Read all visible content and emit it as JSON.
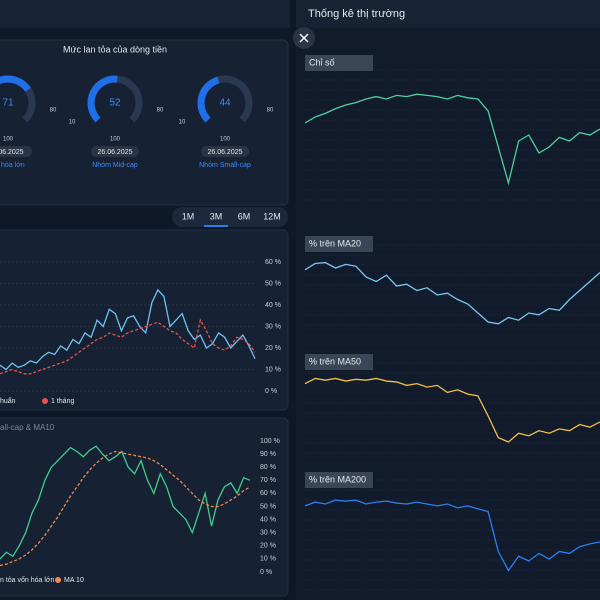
{
  "header": {
    "title": "Thống kê thị trường"
  },
  "gauge_panel": {
    "title": "Mức lan tỏa của dòng tiền",
    "scale_left": 10,
    "scale_right": 80,
    "scale_max": 100,
    "gauges": [
      {
        "value": 71,
        "date": "6.06.2025",
        "label": "ồn hóa lớn"
      },
      {
        "value": 52,
        "date": "26.06.2025",
        "label": "Nhóm Mid-cap"
      },
      {
        "value": 44,
        "date": "26.06.2025",
        "label": "Nhóm Small-cap"
      }
    ]
  },
  "periods": [
    "1M",
    "3M",
    "6M",
    "12M"
  ],
  "active_period_index": 1,
  "chart_data": [
    {
      "type": "line",
      "ylim": [
        0,
        60
      ],
      "yticks": [
        {
          "value": 0,
          "label": "0 %"
        },
        {
          "value": 10,
          "label": "10 %"
        },
        {
          "value": 20,
          "label": "20 %"
        },
        {
          "value": 30,
          "label": "30 %"
        },
        {
          "value": 40,
          "label": "40 %"
        },
        {
          "value": 50,
          "label": "50 %"
        },
        {
          "value": 60,
          "label": "60 %"
        }
      ],
      "grid": true,
      "series": [
        {
          "name": "huẩn",
          "color": "#6ec3f0",
          "dashed": false,
          "values": [
            12,
            10,
            13,
            11,
            12,
            14,
            13,
            16,
            18,
            17,
            21,
            19,
            24,
            22,
            27,
            25,
            33,
            30,
            38,
            36,
            28,
            34,
            35,
            30,
            27,
            41,
            47,
            44,
            30,
            33,
            36,
            28,
            24,
            26,
            20,
            22,
            27,
            25,
            20,
            23,
            26,
            21,
            15
          ]
        },
        {
          "name": "1 tháng",
          "color": "#e5534b",
          "dashed": true,
          "values": [
            8,
            9,
            10,
            9,
            8,
            8,
            9,
            10,
            11,
            12,
            13,
            14,
            16,
            18,
            20,
            22,
            24,
            25,
            27,
            26,
            25,
            27,
            28,
            29,
            30,
            31,
            32,
            30,
            28,
            27,
            24,
            22,
            20,
            33,
            28,
            22,
            20,
            19,
            21,
            25,
            24,
            22,
            18
          ]
        }
      ]
    },
    {
      "type": "line",
      "title": "all-cap & MA10",
      "ylim": [
        0,
        100
      ],
      "yticks": [
        {
          "value": 0,
          "label": "0 %"
        },
        {
          "value": 10,
          "label": "10 %"
        },
        {
          "value": 20,
          "label": "20 %"
        },
        {
          "value": 30,
          "label": "30 %"
        },
        {
          "value": 40,
          "label": "40 %"
        },
        {
          "value": 50,
          "label": "50 %"
        },
        {
          "value": 60,
          "label": "60 %"
        },
        {
          "value": 70,
          "label": "70 %"
        },
        {
          "value": 80,
          "label": "80 %"
        },
        {
          "value": 90,
          "label": "90 %"
        },
        {
          "value": 100,
          "label": "100 %"
        }
      ],
      "grid": false,
      "series": [
        {
          "name": "n tỏa vốn hóa lớn",
          "color": "#3ecf8e",
          "dashed": false,
          "values": [
            10,
            15,
            12,
            20,
            30,
            45,
            55,
            70,
            80,
            85,
            90,
            95,
            92,
            88,
            93,
            96,
            90,
            85,
            88,
            92,
            80,
            75,
            85,
            70,
            60,
            75,
            65,
            50,
            45,
            40,
            30,
            45,
            60,
            35,
            55,
            65,
            68,
            60,
            72,
            70
          ]
        },
        {
          "name": "MA 10",
          "color": "#f08a4b",
          "dashed": true,
          "values": [
            5,
            6,
            8,
            10,
            13,
            17,
            22,
            28,
            35,
            42,
            50,
            58,
            65,
            72,
            78,
            83,
            87,
            90,
            92,
            91,
            90,
            89,
            88,
            87,
            85,
            82,
            78,
            74,
            70,
            65,
            60,
            55,
            52,
            50,
            50,
            52,
            55,
            58,
            62,
            65
          ]
        }
      ]
    },
    {
      "type": "line",
      "title": "Chỉ số",
      "ylim": [
        0,
        100
      ],
      "color": "#4fd1a0",
      "values": [
        60,
        65,
        68,
        72,
        75,
        77,
        80,
        82,
        80,
        83,
        82,
        84,
        83,
        82,
        80,
        83,
        81,
        80,
        70,
        40,
        10,
        45,
        50,
        35,
        40,
        48,
        45,
        52,
        50,
        55
      ]
    },
    {
      "type": "line",
      "title": "% trên MA20",
      "ylim": [
        0,
        100
      ],
      "color": "#7cc6ee",
      "values": [
        78,
        85,
        86,
        80,
        84,
        82,
        70,
        65,
        72,
        60,
        62,
        55,
        58,
        50,
        52,
        45,
        40,
        30,
        20,
        18,
        25,
        22,
        30,
        28,
        35,
        33,
        45,
        55,
        65,
        75
      ]
    },
    {
      "type": "line",
      "title": "% trên MA50",
      "ylim": [
        0,
        100
      ],
      "color": "#f2c04b",
      "values": [
        82,
        88,
        86,
        88,
        85,
        87,
        86,
        88,
        85,
        84,
        80,
        82,
        78,
        80,
        72,
        75,
        70,
        68,
        45,
        20,
        15,
        25,
        22,
        28,
        25,
        30,
        28,
        35,
        32,
        38
      ]
    },
    {
      "type": "line",
      "title": "% trên MA200",
      "ylim": [
        0,
        100
      ],
      "color": "#2d7ff0",
      "values": [
        78,
        82,
        80,
        84,
        83,
        84,
        80,
        82,
        83,
        81,
        80,
        82,
        80,
        78,
        80,
        76,
        78,
        75,
        72,
        30,
        10,
        25,
        20,
        28,
        22,
        30,
        28,
        35,
        38,
        40
      ]
    }
  ]
}
